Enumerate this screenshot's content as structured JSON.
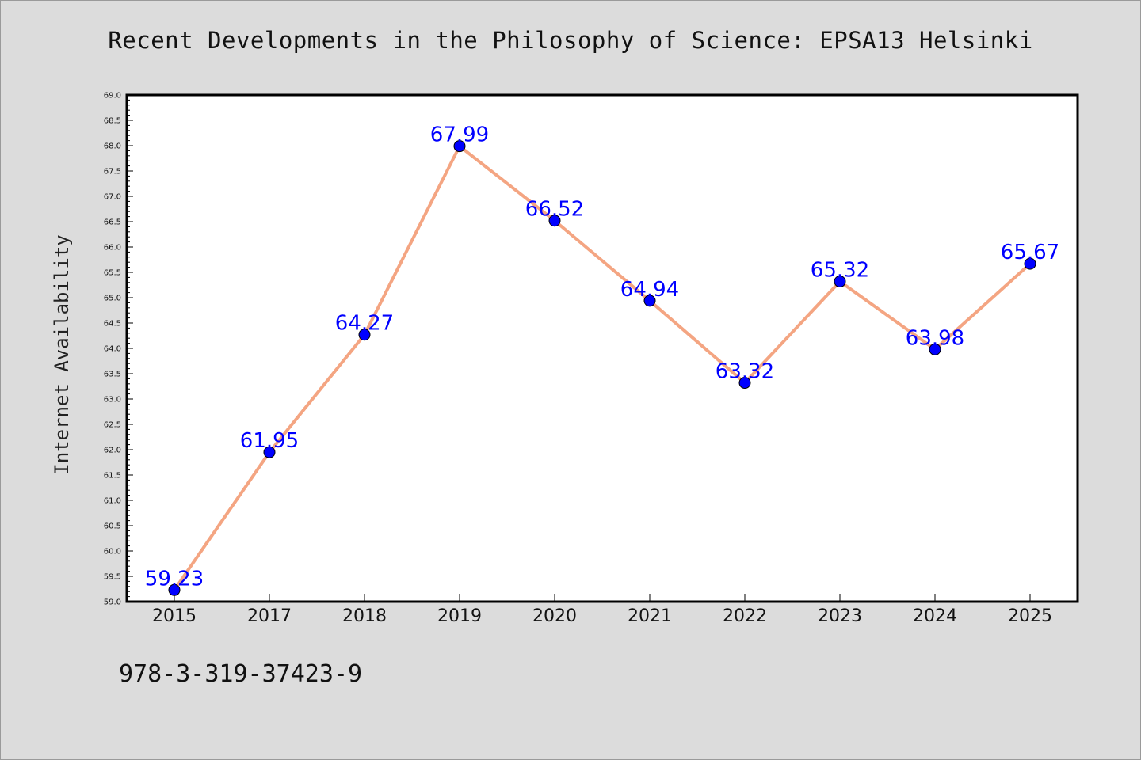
{
  "chart_data": {
    "type": "line",
    "title": "Recent Developments in the Philosophy of Science: EPSA13 Helsinki",
    "xlabel": "",
    "ylabel": "Internet Availability",
    "categories": [
      "2015",
      "2017",
      "2018",
      "2019",
      "2020",
      "2021",
      "2022",
      "2023",
      "2024",
      "2025"
    ],
    "series": [
      {
        "values": [
          59.23,
          61.95,
          64.27,
          67.99,
          66.52,
          64.94,
          63.32,
          65.32,
          63.98,
          65.67
        ]
      }
    ],
    "data_labels": [
      "59.23",
      "61.95",
      "64.27",
      "67.99",
      "66.52",
      "64.94",
      "63.32",
      "65.32",
      "63.98",
      "65.67"
    ],
    "ylim": [
      59.0,
      69.0
    ],
    "yticks": [
      "59.0",
      "59.5",
      "60.0",
      "60.5",
      "61.0",
      "61.5",
      "62.0",
      "62.5",
      "63.0",
      "63.5",
      "64.0",
      "64.5",
      "65.0",
      "65.5",
      "66.0",
      "66.5",
      "67.0",
      "67.5",
      "68.0",
      "68.5",
      "69.0"
    ],
    "grid": false,
    "line_color": "#f4a582",
    "marker_color": "#0000ff",
    "label_color": "#0000ff"
  },
  "footer": "978-3-319-37423-9"
}
